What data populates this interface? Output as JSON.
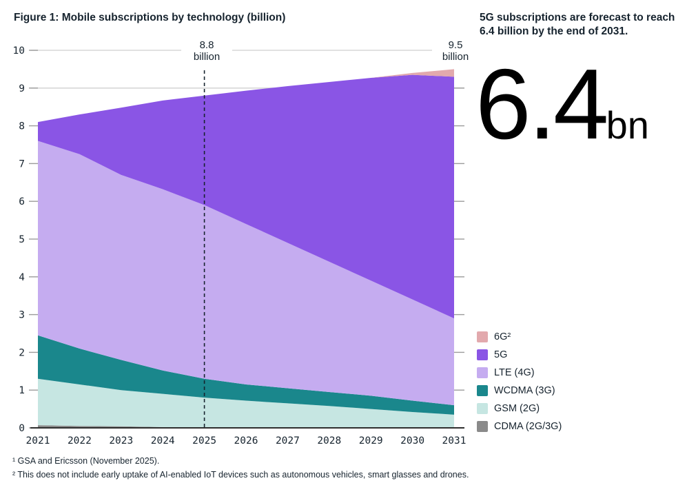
{
  "title": "Figure 1: Mobile subscriptions by technology (billion)",
  "side_panel": {
    "heading": "5G subscriptions are forecast to reach 6.4 billion by the end of 2031.",
    "big_value": "6.4",
    "big_unit": "bn"
  },
  "annotations": {
    "at_2025": {
      "value": "8.8",
      "unit": "billion",
      "year": 2025
    },
    "at_2031": {
      "value": "9.5",
      "unit": "billion",
      "year": 2031
    }
  },
  "legend": [
    {
      "label": "6G²",
      "color": "#e2a9ad"
    },
    {
      "label": "5G",
      "color": "#8a55e5"
    },
    {
      "label": "LTE (4G)",
      "color": "#c5acf0"
    },
    {
      "label": "WCDMA (3G)",
      "color": "#1a878c"
    },
    {
      "label": "GSM (2G)",
      "color": "#c6e6e2"
    },
    {
      "label": "CDMA (2G/3G)",
      "color": "#8a8a8a"
    }
  ],
  "footnotes": [
    "¹ GSA and Ericsson (November 2025).",
    "² This does not include early uptake of AI-enabled IoT devices such as autonomous vehicles, smart glasses and drones."
  ],
  "chart_data": {
    "type": "area",
    "stacked": true,
    "title": "Figure 1: Mobile subscriptions by technology (billion)",
    "xlabel": "",
    "ylabel": "",
    "x": [
      2021,
      2022,
      2023,
      2024,
      2025,
      2026,
      2027,
      2028,
      2029,
      2030,
      2031
    ],
    "series": [
      {
        "name": "CDMA (2G/3G)",
        "color": "#8a8a8a",
        "values": [
          0.07,
          0.05,
          0.04,
          0.02,
          0.01,
          0.0,
          0.0,
          0.0,
          0.0,
          0.0,
          0.0
        ]
      },
      {
        "name": "GSM (2G)",
        "color": "#c6e6e2",
        "values": [
          1.23,
          1.1,
          0.96,
          0.88,
          0.79,
          0.72,
          0.65,
          0.58,
          0.5,
          0.42,
          0.35
        ]
      },
      {
        "name": "WCDMA (3G)",
        "color": "#1a878c",
        "values": [
          1.15,
          0.95,
          0.8,
          0.62,
          0.5,
          0.43,
          0.4,
          0.37,
          0.35,
          0.3,
          0.25
        ]
      },
      {
        "name": "LTE (4G)",
        "color": "#c5acf0",
        "values": [
          5.15,
          5.15,
          4.9,
          4.8,
          4.6,
          4.25,
          3.85,
          3.45,
          3.05,
          2.68,
          2.3
        ]
      },
      {
        "name": "5G",
        "color": "#8a55e5",
        "values": [
          0.5,
          1.05,
          1.78,
          2.35,
          2.9,
          3.53,
          4.15,
          4.76,
          5.37,
          5.95,
          6.4
        ]
      },
      {
        "name": "6G",
        "color": "#e2a9ad",
        "values": [
          0.0,
          0.0,
          0.0,
          0.0,
          0.0,
          0.0,
          0.0,
          0.0,
          0.0,
          0.05,
          0.2
        ]
      }
    ],
    "totals": [
      8.1,
      8.3,
      8.48,
      8.67,
      8.8,
      8.93,
      9.05,
      9.16,
      9.27,
      9.4,
      9.5
    ],
    "ylim": [
      0,
      10
    ],
    "yticks": [
      0,
      1,
      2,
      3,
      4,
      5,
      6,
      7,
      8,
      9,
      10
    ],
    "gridlines_at": [
      9,
      10
    ],
    "dashed_line_x": 2025,
    "legend_position": "right-bottom"
  }
}
